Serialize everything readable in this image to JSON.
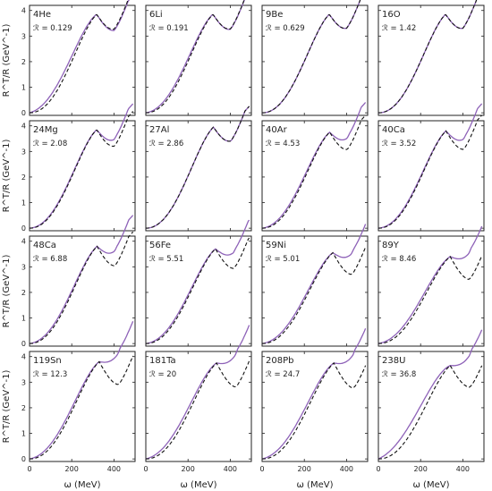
{
  "figure": {
    "ylabel": "R^T/R (GeV^-1)",
    "xlabel": "ω (MeV)",
    "x_ticks": [
      0,
      200,
      400
    ],
    "y_ticks": [
      0,
      1,
      2,
      3,
      4
    ],
    "xlim": [
      0,
      500
    ],
    "ylim": [
      -0.1,
      4.2
    ],
    "colors": {
      "solid": "#8e62b8",
      "dashed": "#111111",
      "axes": "#222222"
    }
  },
  "chart_data": [
    {
      "type": "line",
      "title": "4He",
      "annotation": "ℛ = 0.129",
      "R": 0.129,
      "shape": {
        "amp": 3.85,
        "peak": 318,
        "w": 150,
        "tail_solid": -0.1,
        "tail_dashed": -0.04,
        "lead_solid": 0.22,
        "lead_dashed": 0.0
      }
    },
    {
      "type": "line",
      "title": "6Li",
      "annotation": "ℛ = 0.191",
      "R": 0.191,
      "shape": {
        "amp": 3.85,
        "peak": 318,
        "w": 150,
        "tail_solid": -0.05,
        "tail_dashed": -0.03,
        "lead_solid": 0.12,
        "lead_dashed": 0.0
      }
    },
    {
      "type": "line",
      "title": "9Be",
      "annotation": "ℛ = 0.629",
      "R": 0.629,
      "shape": {
        "amp": 3.85,
        "peak": 318,
        "w": 150,
        "tail_solid": 0.0,
        "tail_dashed": 0.0,
        "lead_solid": 0.0,
        "lead_dashed": 0.0
      }
    },
    {
      "type": "line",
      "title": "16O",
      "annotation": "ℛ = 1.42",
      "R": 1.42,
      "shape": {
        "amp": 3.85,
        "peak": 318,
        "w": 150,
        "tail_solid": 0.0,
        "tail_dashed": 0.0,
        "lead_solid": 0.0,
        "lead_dashed": 0.0
      }
    },
    {
      "type": "line",
      "title": "24Mg",
      "annotation": "ℛ = 2.08",
      "R": 2.08,
      "shape": {
        "amp": 3.85,
        "peak": 318,
        "w": 150,
        "tail_solid": 0.18,
        "tail_dashed": -0.12,
        "lead_solid": 0.05,
        "lead_dashed": 0.0
      }
    },
    {
      "type": "line",
      "title": "27Al",
      "annotation": "ℛ = 2.86",
      "R": 2.86,
      "shape": {
        "amp": 3.95,
        "peak": 320,
        "w": 150,
        "tail_solid": 0.0,
        "tail_dashed": 0.0,
        "lead_solid": 0.0,
        "lead_dashed": 0.0
      }
    },
    {
      "type": "line",
      "title": "40Ar",
      "annotation": "ℛ = 4.53",
      "R": 4.53,
      "shape": {
        "amp": 3.75,
        "peak": 320,
        "w": 150,
        "tail_solid": 0.35,
        "tail_dashed": -0.15,
        "lead_solid": 0.1,
        "lead_dashed": 0.0
      }
    },
    {
      "type": "line",
      "title": "40Ca",
      "annotation": "ℛ = 3.52",
      "R": 3.52,
      "shape": {
        "amp": 3.8,
        "peak": 320,
        "w": 150,
        "tail_solid": 0.25,
        "tail_dashed": -0.2,
        "lead_solid": 0.06,
        "lead_dashed": 0.0
      }
    },
    {
      "type": "line",
      "title": "48Ca",
      "annotation": "ℛ = 6.88",
      "R": 6.88,
      "shape": {
        "amp": 3.8,
        "peak": 320,
        "w": 150,
        "tail_solid": 0.4,
        "tail_dashed": -0.25,
        "lead_solid": 0.1,
        "lead_dashed": 0.0
      }
    },
    {
      "type": "line",
      "title": "56Fe",
      "annotation": "ℛ = 5.51",
      "R": 5.51,
      "shape": {
        "amp": 3.7,
        "peak": 330,
        "w": 155,
        "tail_solid": 0.45,
        "tail_dashed": -0.25,
        "lead_solid": 0.1,
        "lead_dashed": 0.0
      }
    },
    {
      "type": "line",
      "title": "59Ni",
      "annotation": "ℛ = 5.01",
      "R": 5.01,
      "shape": {
        "amp": 3.55,
        "peak": 335,
        "w": 158,
        "tail_solid": 0.55,
        "tail_dashed": -0.35,
        "lead_solid": 0.12,
        "lead_dashed": 0.0
      }
    },
    {
      "type": "line",
      "title": "89Y",
      "annotation": "ℛ = 8.46",
      "R": 8.46,
      "shape": {
        "amp": 3.4,
        "peak": 340,
        "w": 160,
        "tail_solid": 0.75,
        "tail_dashed": -0.4,
        "lead_solid": 0.15,
        "lead_dashed": 0.0
      }
    },
    {
      "type": "line",
      "title": "119Sn",
      "annotation": "ℛ = 12.3",
      "R": 12.3,
      "shape": {
        "amp": 3.8,
        "peak": 330,
        "w": 160,
        "tail_solid": 0.95,
        "tail_dashed": -0.4,
        "lead_solid": 0.15,
        "lead_dashed": 0.0
      }
    },
    {
      "type": "line",
      "title": "181Ta",
      "annotation": "ℛ = 20",
      "R": 20,
      "shape": {
        "amp": 3.75,
        "peak": 335,
        "w": 160,
        "tail_solid": 0.95,
        "tail_dashed": -0.45,
        "lead_solid": 0.2,
        "lead_dashed": 0.0
      }
    },
    {
      "type": "line",
      "title": "208Pb",
      "annotation": "ℛ = 24.7",
      "R": 24.7,
      "shape": {
        "amp": 3.75,
        "peak": 340,
        "w": 162,
        "tail_solid": 0.95,
        "tail_dashed": -0.5,
        "lead_solid": 0.2,
        "lead_dashed": 0.0
      }
    },
    {
      "type": "line",
      "title": "238U",
      "annotation": "ℛ = 36.8",
      "R": 36.8,
      "shape": {
        "amp": 3.65,
        "peak": 340,
        "w": 165,
        "tail_solid": 1.05,
        "tail_dashed": -0.35,
        "lead_solid": 0.4,
        "lead_dashed": 0.0
      }
    }
  ]
}
